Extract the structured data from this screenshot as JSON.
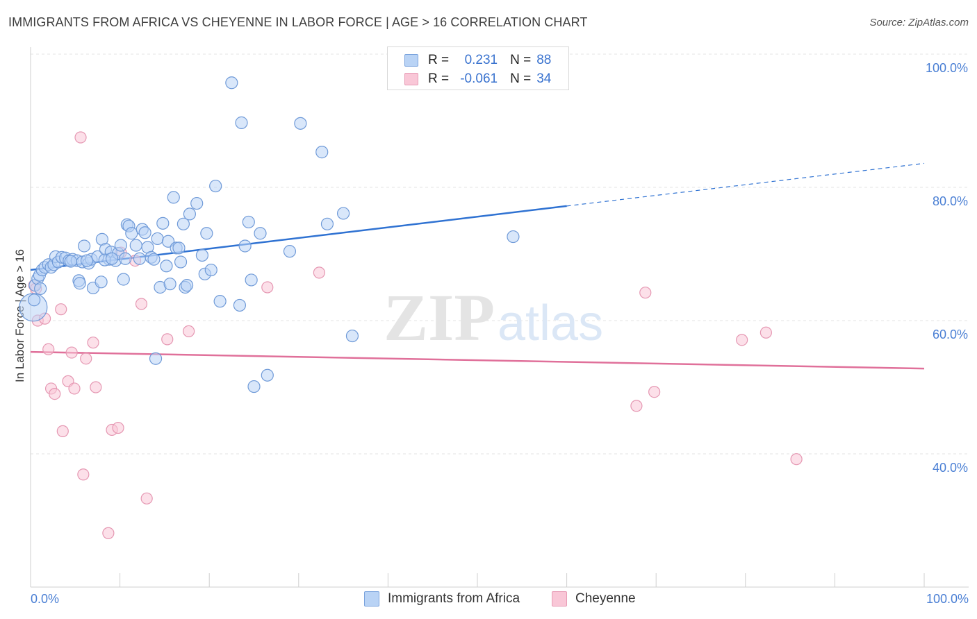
{
  "header": {
    "title": "IMMIGRANTS FROM AFRICA VS CHEYENNE IN LABOR FORCE | AGE > 16 CORRELATION CHART",
    "source": "Source: ZipAtlas.com"
  },
  "watermark": {
    "zip": "ZIP",
    "atlas": "atlas"
  },
  "legend": {
    "rows": [
      {
        "r_label": "R =",
        "r_value": "0.231",
        "n_label": "N =",
        "n_value": "88"
      },
      {
        "r_label": "R =",
        "r_value": "-0.061",
        "n_label": "N =",
        "n_value": "34"
      }
    ]
  },
  "bottom_legend": [
    "Immigrants from Africa",
    "Cheyenne"
  ],
  "colors": {
    "blue_fill": "#b9d3f5",
    "blue_stroke": "#6f9ad8",
    "blue_line": "#2f72d2",
    "pink_fill": "#f9c7d7",
    "pink_stroke": "#e597b2",
    "pink_line": "#e0709a",
    "grid": "#e3e3e3",
    "tick_text": "#4a7fd4"
  },
  "chart_data": {
    "type": "scatter",
    "title": "IMMIGRANTS FROM AFRICA VS CHEYENNE IN LABOR FORCE | AGE > 16 CORRELATION CHART",
    "xlabel": "",
    "ylabel": "In Labor Force | Age > 16",
    "xlim": [
      0,
      100
    ],
    "ylim": [
      20,
      102
    ],
    "x_tick_labels": [
      "0.0%",
      "100.0%"
    ],
    "y_ticks": [
      40,
      60,
      80,
      100
    ],
    "y_tick_labels": [
      "40.0%",
      "60.0%",
      "80.0%",
      "100.0%"
    ],
    "grid": true,
    "legend_position": "top-center",
    "series": [
      {
        "name": "Immigrants from Africa",
        "color": "#6f9ad8",
        "trend": {
          "x": [
            0,
            60
          ],
          "y": [
            67.6,
            77.2
          ],
          "dashed_to": [
            100,
            83.6
          ]
        },
        "points": [
          [
            0.3,
            62
          ],
          [
            0.5,
            65.3
          ],
          [
            0.8,
            66.3
          ],
          [
            1.0,
            66.8
          ],
          [
            1.3,
            67.6
          ],
          [
            1.6,
            68.0
          ],
          [
            2.0,
            68.4
          ],
          [
            2.3,
            68.0
          ],
          [
            2.6,
            68.4
          ],
          [
            2.8,
            69.6
          ],
          [
            3.1,
            68.8
          ],
          [
            3.5,
            69.5
          ],
          [
            3.9,
            69.4
          ],
          [
            4.3,
            69.0
          ],
          [
            4.7,
            69.2
          ],
          [
            5.2,
            69.0
          ],
          [
            5.4,
            66.0
          ],
          [
            5.5,
            65.6
          ],
          [
            5.8,
            68.8
          ],
          [
            6.0,
            71.2
          ],
          [
            6.5,
            68.6
          ],
          [
            6.8,
            69.2
          ],
          [
            7.0,
            64.9
          ],
          [
            7.5,
            69.6
          ],
          [
            7.9,
            65.8
          ],
          [
            8.0,
            72.2
          ],
          [
            8.4,
            70.7
          ],
          [
            8.8,
            69.2
          ],
          [
            9.0,
            70.3
          ],
          [
            9.5,
            69.0
          ],
          [
            9.8,
            70.1
          ],
          [
            10.1,
            71.3
          ],
          [
            10.4,
            66.2
          ],
          [
            10.6,
            69.3
          ],
          [
            10.8,
            74.4
          ],
          [
            11.0,
            74.2
          ],
          [
            11.3,
            73.1
          ],
          [
            11.8,
            71.3
          ],
          [
            12.2,
            69.3
          ],
          [
            12.5,
            73.7
          ],
          [
            12.8,
            73.2
          ],
          [
            13.1,
            71.0
          ],
          [
            13.5,
            69.5
          ],
          [
            13.8,
            69.2
          ],
          [
            14.2,
            72.3
          ],
          [
            14.5,
            65.0
          ],
          [
            14.8,
            74.6
          ],
          [
            15.2,
            68.2
          ],
          [
            15.4,
            71.9
          ],
          [
            15.6,
            65.5
          ],
          [
            16.0,
            78.5
          ],
          [
            16.3,
            70.9
          ],
          [
            16.6,
            70.9
          ],
          [
            16.8,
            68.8
          ],
          [
            17.1,
            74.5
          ],
          [
            17.3,
            65.0
          ],
          [
            17.5,
            65.3
          ],
          [
            17.8,
            76.0
          ],
          [
            18.6,
            77.6
          ],
          [
            19.2,
            69.8
          ],
          [
            19.5,
            67.0
          ],
          [
            19.7,
            73.1
          ],
          [
            20.2,
            67.6
          ],
          [
            20.7,
            80.2
          ],
          [
            21.2,
            62.9
          ],
          [
            22.5,
            95.7
          ],
          [
            23.4,
            62.3
          ],
          [
            23.6,
            89.7
          ],
          [
            24.0,
            71.2
          ],
          [
            24.4,
            74.8
          ],
          [
            24.7,
            66.1
          ],
          [
            25.7,
            73.1
          ],
          [
            26.5,
            51.8
          ],
          [
            29.0,
            70.4
          ],
          [
            30.2,
            89.6
          ],
          [
            32.6,
            85.3
          ],
          [
            33.2,
            74.5
          ],
          [
            35.0,
            76.1
          ],
          [
            36.0,
            57.7
          ],
          [
            54.0,
            72.6
          ],
          [
            14.0,
            54.3
          ],
          [
            25.0,
            50.1
          ],
          [
            0.4,
            63.1
          ],
          [
            1.1,
            64.8
          ],
          [
            8.3,
            69.1
          ],
          [
            9.1,
            69.3
          ],
          [
            6.3,
            69.0
          ],
          [
            4.5,
            68.9
          ]
        ]
      },
      {
        "name": "Cheyenne",
        "color": "#e597b2",
        "trend": {
          "x": [
            0,
            100
          ],
          "y": [
            55.3,
            52.8
          ]
        },
        "points": [
          [
            0.4,
            65.3
          ],
          [
            0.6,
            64.8
          ],
          [
            0.8,
            60.0
          ],
          [
            1.6,
            60.3
          ],
          [
            2.0,
            55.7
          ],
          [
            2.3,
            49.8
          ],
          [
            2.7,
            49.0
          ],
          [
            3.4,
            61.7
          ],
          [
            3.6,
            43.4
          ],
          [
            4.2,
            50.9
          ],
          [
            4.6,
            55.2
          ],
          [
            4.9,
            49.8
          ],
          [
            5.6,
            87.5
          ],
          [
            5.9,
            36.9
          ],
          [
            6.2,
            54.3
          ],
          [
            7.0,
            56.7
          ],
          [
            7.3,
            50.0
          ],
          [
            8.7,
            28.1
          ],
          [
            9.1,
            43.6
          ],
          [
            9.8,
            43.9
          ],
          [
            10.1,
            70.2
          ],
          [
            11.7,
            69.0
          ],
          [
            12.4,
            62.5
          ],
          [
            13.0,
            33.3
          ],
          [
            15.3,
            57.2
          ],
          [
            17.7,
            58.4
          ],
          [
            26.5,
            65.0
          ],
          [
            32.3,
            67.2
          ],
          [
            67.8,
            47.2
          ],
          [
            68.8,
            64.2
          ],
          [
            69.8,
            49.3
          ],
          [
            79.6,
            57.1
          ],
          [
            82.3,
            58.2
          ],
          [
            85.7,
            39.2
          ]
        ]
      }
    ]
  }
}
